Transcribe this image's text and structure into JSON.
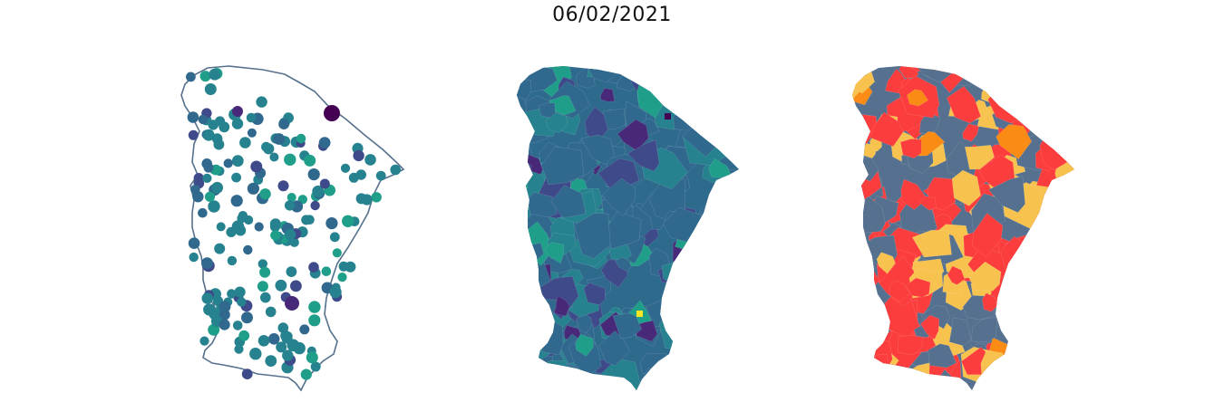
{
  "title": "06/02/2021",
  "panels": [
    {
      "id": "stations",
      "kind": "point-map"
    },
    {
      "id": "municipal-choropleth",
      "kind": "choropleth",
      "palette": "viridis"
    },
    {
      "id": "category-map",
      "kind": "categorical-choropleth",
      "colors": {
        "red": "#fc3d3d",
        "yellow": "#f8c24f",
        "slate": "#55718f",
        "orange": "#fa8c16"
      }
    }
  ],
  "colors": {
    "outline": "#56718d",
    "viridis": [
      "#440154",
      "#482878",
      "#3e4a89",
      "#31688e",
      "#26828e",
      "#1f9e89",
      "#35b779",
      "#6ece58",
      "#b5de2b",
      "#fde725"
    ]
  }
}
